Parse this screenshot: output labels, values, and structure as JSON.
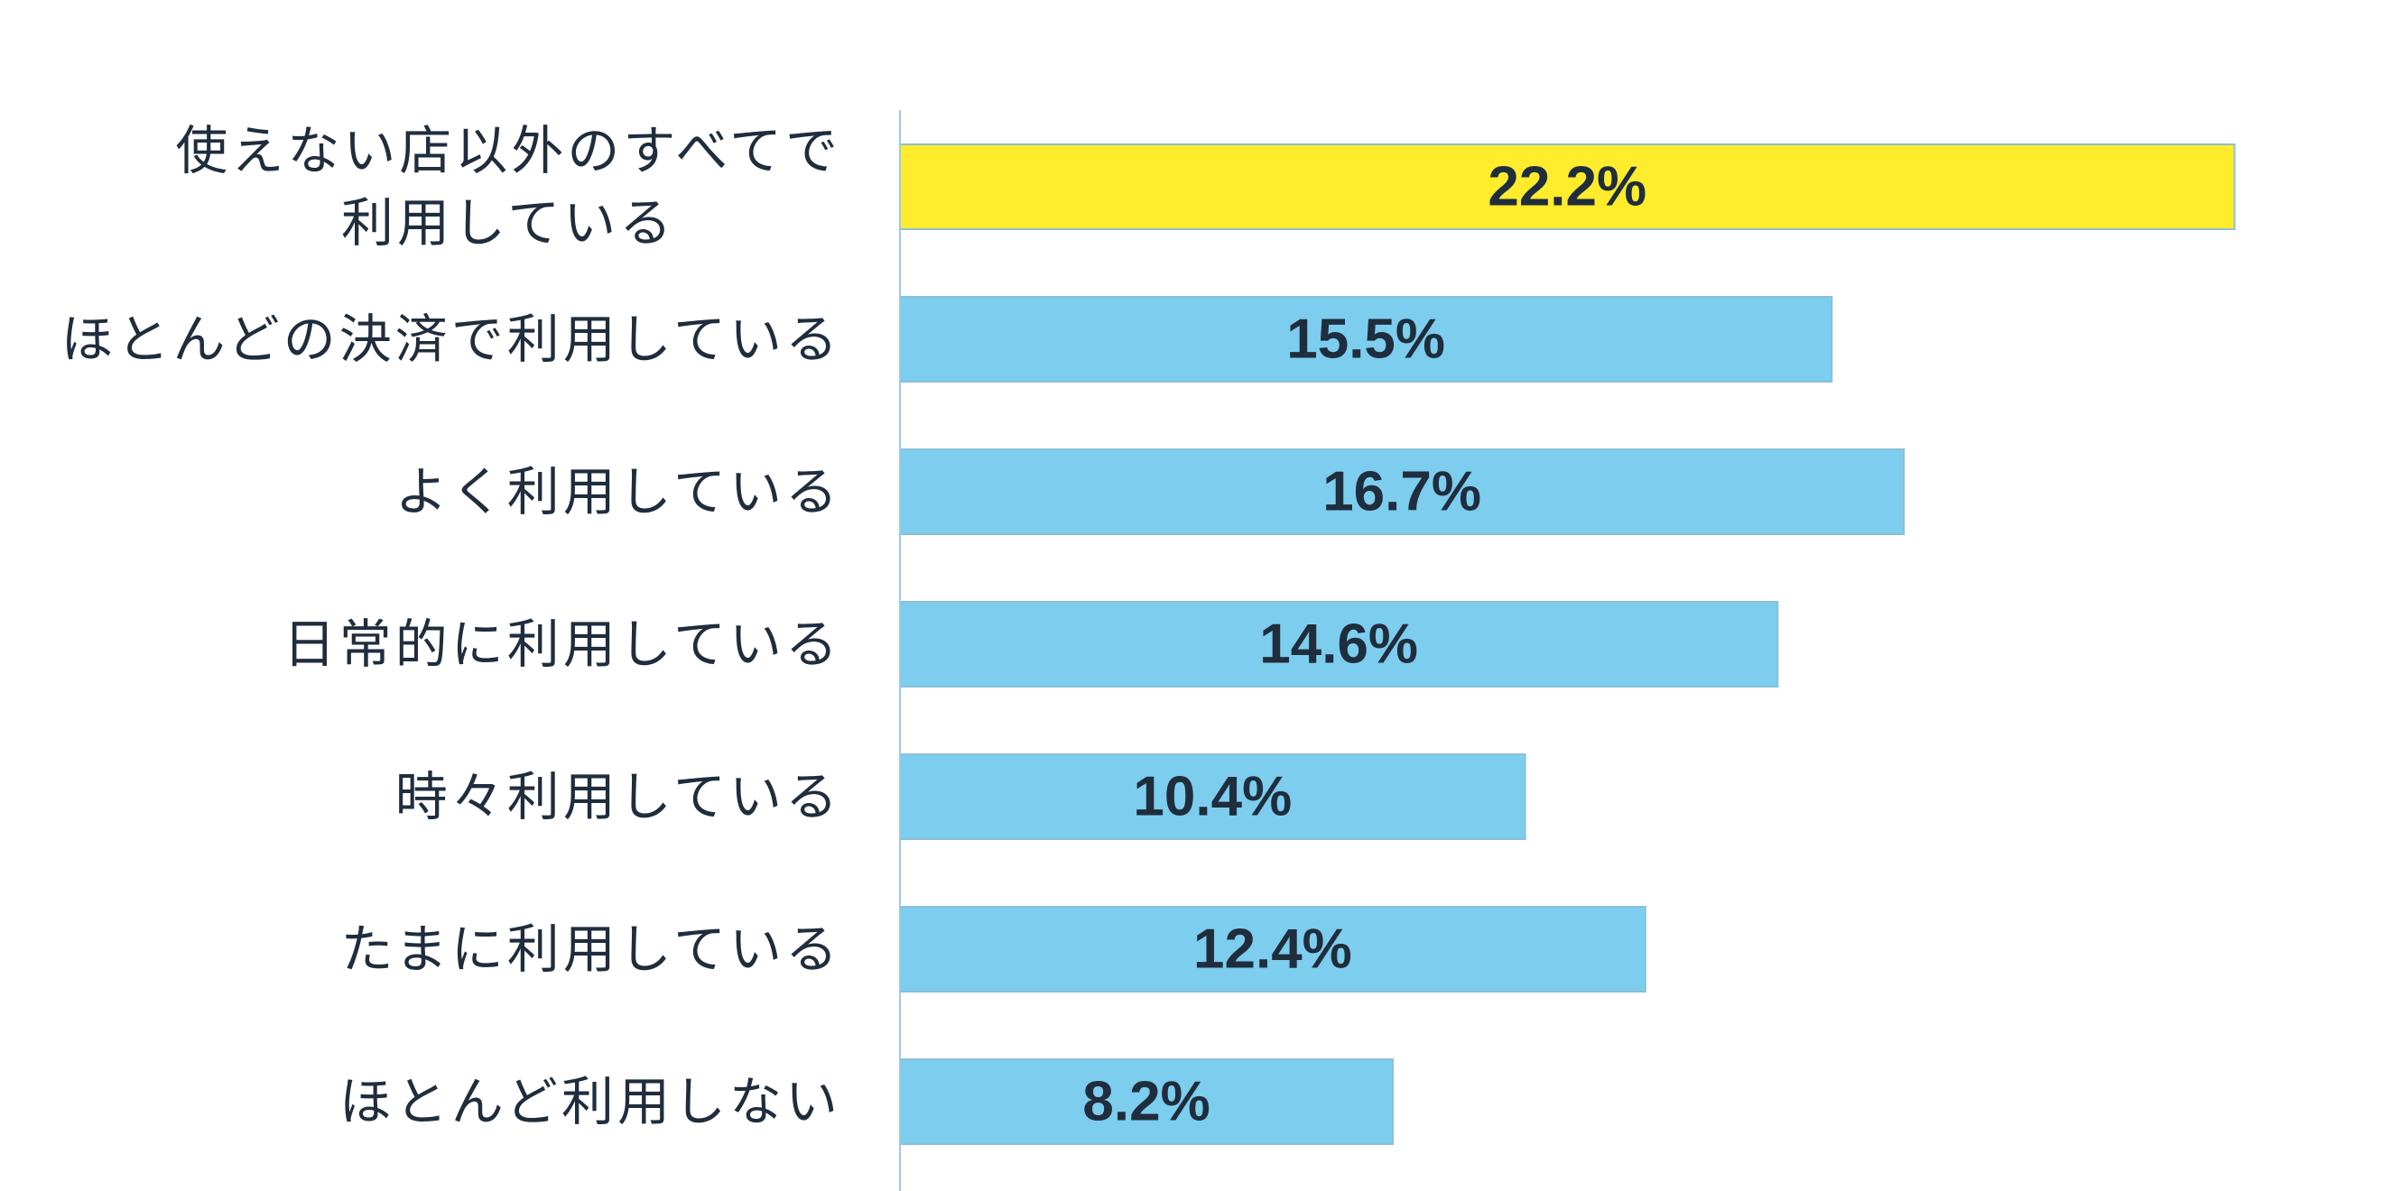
{
  "chart_data": {
    "type": "bar",
    "orientation": "horizontal",
    "categories": [
      [
        "使えない店以外のすべてで",
        "利用している"
      ],
      [
        "ほとんどの決済で利用している"
      ],
      [
        "よく利用している"
      ],
      [
        "日常的に利用している"
      ],
      [
        "時々利用している"
      ],
      [
        "たまに利用している"
      ],
      [
        "ほとんど利用しない"
      ]
    ],
    "values": [
      22.2,
      15.5,
      16.7,
      14.6,
      10.4,
      12.4,
      8.2
    ],
    "value_labels": [
      "22.2%",
      "15.5%",
      "16.7%",
      "14.6%",
      "10.4%",
      "12.4%",
      "8.2%"
    ],
    "highlight_index": 0,
    "xlim": [
      0,
      25
    ],
    "grid": false,
    "legend": "none",
    "colors": {
      "bar": "#7ccdee",
      "highlight": "#ffec2d",
      "bar_stroke": "#8cbfd8",
      "axis": "#9ecae1",
      "text": "#1f2d3d"
    }
  }
}
